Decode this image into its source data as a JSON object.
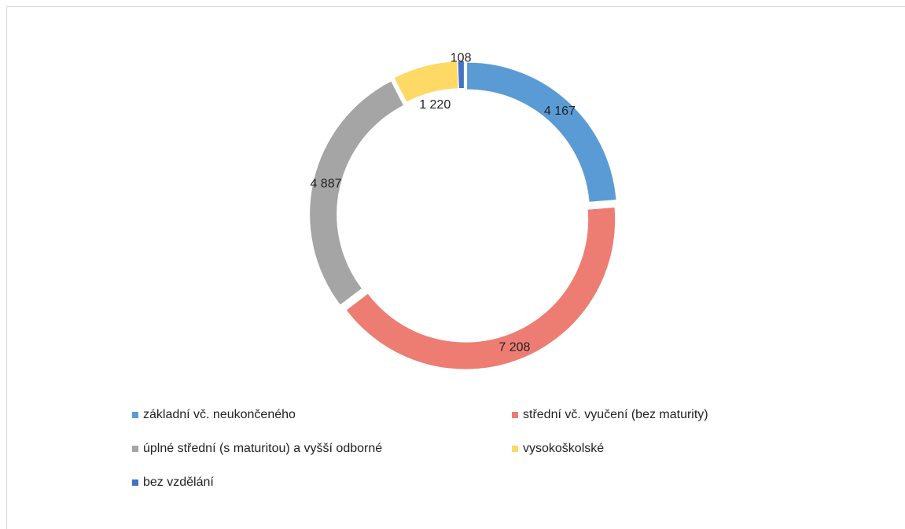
{
  "chart_data": {
    "type": "donut",
    "categories": [
      "základní vč. neukončeného",
      "střední vč. vyučení (bez maturity)",
      "úplné střední (s maturitou) a vyšší odborné",
      "vysokoškolské",
      "bez vzdělání"
    ],
    "values": [
      4167,
      7208,
      4887,
      1220,
      108
    ],
    "value_labels": [
      "4 167",
      "7 208",
      "4 887",
      "1 220",
      "108"
    ],
    "colors": [
      "#5b9bd5",
      "#ed7d72",
      "#a5a5a5",
      "#ffd966",
      "#4472c4"
    ],
    "legend": "bottom"
  }
}
